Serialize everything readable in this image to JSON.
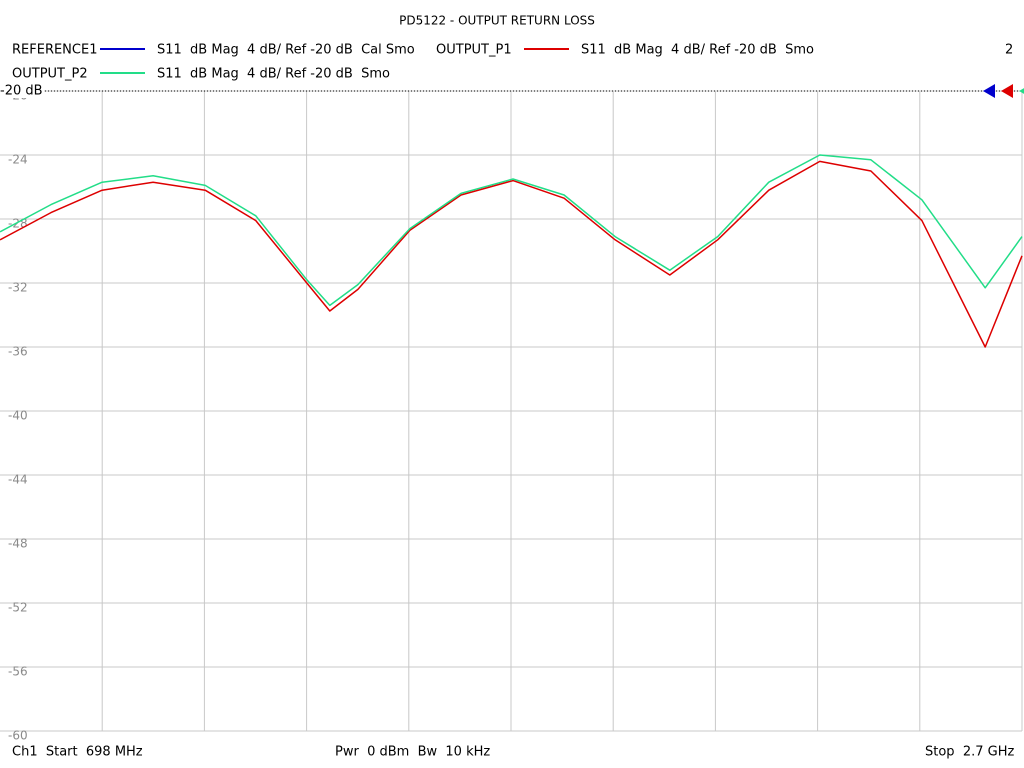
{
  "chart_data": {
    "type": "line",
    "title": "PD5122 - OUTPUT RETURN LOSS",
    "channel": "2",
    "x": [
      698,
      798,
      898,
      998,
      1100,
      1199,
      1299,
      1344,
      1399,
      1501,
      1601,
      1703,
      1803,
      1903,
      2010,
      2104,
      2204,
      2304,
      2404,
      2504,
      2628,
      2700
    ],
    "xlim": [
      698,
      2700
    ],
    "x_divisions": 10,
    "ylim": [
      -60,
      -20
    ],
    "yticks": [
      -20,
      -24,
      -28,
      -32,
      -36,
      -40,
      -44,
      -48,
      -52,
      -56,
      -60
    ],
    "reference_line": {
      "value": -20,
      "label": "-20 dB"
    },
    "grid": true,
    "series": [
      {
        "name": "REFERENCE1",
        "description": "S11  dB Mag  4 dB/ Ref -20 dB  Cal Smo",
        "color": "#0000cc",
        "values": [
          null,
          null,
          null,
          null,
          null,
          null,
          null,
          null,
          null,
          null,
          null,
          null,
          null,
          null,
          null,
          null,
          null,
          null,
          null,
          null,
          null,
          null
        ]
      },
      {
        "name": "OUTPUT_P1",
        "description": "S11  dB Mag  4 dB/ Ref -20 dB  Smo",
        "color": "#dd0000",
        "values": [
          -29.3,
          -27.6,
          -26.2,
          -25.7,
          -26.2,
          -28.1,
          -32.0,
          -33.75,
          -32.4,
          -28.7,
          -26.5,
          -25.6,
          -26.7,
          -29.3,
          -31.5,
          -29.3,
          -26.2,
          -24.4,
          -25.0,
          -28.1,
          -36.0,
          -30.3
        ]
      },
      {
        "name": "OUTPUT_P2",
        "description": "S11  dB Mag  4 dB/ Ref -20 dB  Smo",
        "color": "#22dd88",
        "values": [
          -28.8,
          -27.1,
          -25.7,
          -25.3,
          -25.9,
          -27.8,
          -31.8,
          -33.4,
          -32.1,
          -28.6,
          -26.4,
          -25.5,
          -26.5,
          -29.1,
          -31.2,
          -29.1,
          -25.7,
          -24.0,
          -24.3,
          -26.8,
          -32.3,
          -29.1
        ]
      }
    ],
    "footer": {
      "start": "Ch1  Start  698 MHz",
      "power": "Pwr  0 dBm  Bw  10 kHz",
      "stop": "Stop  2.7 GHz"
    }
  }
}
